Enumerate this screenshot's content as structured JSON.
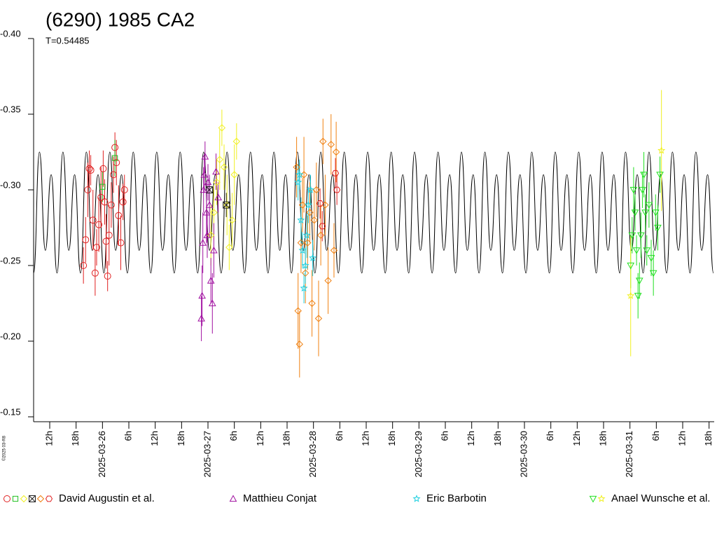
{
  "chart_data": {
    "type": "scatter",
    "title": "(6290) 1985 CA2",
    "subtitle": "T=0.54485",
    "credit": "©2025 03-R8",
    "xlim": [
      "2025-03-25T08:20",
      "2025-03-31T19:10"
    ],
    "xticks": [
      {
        "value": "2025-03-25T12:00",
        "label": "12h"
      },
      {
        "value": "2025-03-25T18:00",
        "label": "18h"
      },
      {
        "value": "2025-03-26T00:00",
        "label": "2025-03-26"
      },
      {
        "value": "2025-03-26T06:00",
        "label": "6h"
      },
      {
        "value": "2025-03-26T12:00",
        "label": "12h"
      },
      {
        "value": "2025-03-26T18:00",
        "label": "18h"
      },
      {
        "value": "2025-03-27T00:00",
        "label": "2025-03-27"
      },
      {
        "value": "2025-03-27T06:00",
        "label": "6h"
      },
      {
        "value": "2025-03-27T12:00",
        "label": "12h"
      },
      {
        "value": "2025-03-27T18:00",
        "label": "18h"
      },
      {
        "value": "2025-03-28T00:00",
        "label": "2025-03-28"
      },
      {
        "value": "2025-03-28T06:00",
        "label": "6h"
      },
      {
        "value": "2025-03-28T12:00",
        "label": "12h"
      },
      {
        "value": "2025-03-28T18:00",
        "label": "18h"
      },
      {
        "value": "2025-03-29T00:00",
        "label": "2025-03-29"
      },
      {
        "value": "2025-03-29T06:00",
        "label": "6h"
      },
      {
        "value": "2025-03-29T12:00",
        "label": "12h"
      },
      {
        "value": "2025-03-29T18:00",
        "label": "18h"
      },
      {
        "value": "2025-03-30T00:00",
        "label": "2025-03-30"
      },
      {
        "value": "2025-03-30T06:00",
        "label": "6h"
      },
      {
        "value": "2025-03-30T12:00",
        "label": "12h"
      },
      {
        "value": "2025-03-30T18:00",
        "label": "18h"
      },
      {
        "value": "2025-03-31T00:00",
        "label": "2025-03-31"
      },
      {
        "value": "2025-03-31T06:00",
        "label": "6h"
      },
      {
        "value": "2025-03-31T12:00",
        "label": "12h"
      },
      {
        "value": "2025-03-31T18:00",
        "label": "18h"
      }
    ],
    "ylim": [
      -0.15,
      -0.4
    ],
    "yticks": [
      {
        "value": -0.4,
        "label": "-0.40"
      },
      -0.35,
      {
        "value": -0.3,
        "label": "-0.30"
      },
      -0.25,
      {
        "value": -0.2,
        "label": "-0.20"
      },
      -0.15
    ],
    "model": {
      "color": "#000000",
      "x": [
        "2025-03-25T08:20",
        "2025-03-25T09:40",
        "2025-03-25T11:00",
        "2025-03-25T12:20",
        "2025-03-25T13:40",
        "2025-03-25T15:00",
        "2025-03-25T16:20",
        "2025-03-25T17:40",
        "2025-03-25T19:00",
        "2025-03-25T20:20",
        "2025-03-25T21:40",
        "2025-03-25T23:00",
        "2025-03-26T00:20",
        "2025-03-26T01:40",
        "2025-03-26T03:00",
        "2025-03-26T04:20",
        "2025-03-26T05:40",
        "2025-03-26T07:00",
        "2025-03-26T08:20",
        "2025-03-26T09:40",
        "2025-03-26T11:00",
        "2025-03-26T12:20",
        "2025-03-26T13:40",
        "2025-03-26T15:00",
        "2025-03-26T16:20",
        "2025-03-26T17:40",
        "2025-03-26T19:00",
        "2025-03-26T20:20",
        "2025-03-26T21:40",
        "2025-03-26T23:00",
        "2025-03-27T00:20",
        "2025-03-27T01:40",
        "2025-03-27T03:00",
        "2025-03-27T04:20",
        "2025-03-27T05:40",
        "2025-03-27T07:00",
        "2025-03-27T08:20",
        "2025-03-27T09:40",
        "2025-03-27T11:00",
        "2025-03-27T12:20",
        "2025-03-27T13:40",
        "2025-03-27T15:00",
        "2025-03-27T16:20",
        "2025-03-27T17:40",
        "2025-03-27T19:00",
        "2025-03-27T20:20",
        "2025-03-27T21:40",
        "2025-03-27T23:00",
        "2025-03-28T00:20",
        "2025-03-28T01:40",
        "2025-03-28T03:00",
        "2025-03-28T04:20",
        "2025-03-28T05:40",
        "2025-03-28T07:00",
        "2025-03-28T08:20",
        "2025-03-28T09:40",
        "2025-03-28T11:00",
        "2025-03-28T12:20",
        "2025-03-28T13:40",
        "2025-03-28T15:00",
        "2025-03-28T16:20",
        "2025-03-28T17:40",
        "2025-03-28T19:00",
        "2025-03-28T20:20",
        "2025-03-28T21:40",
        "2025-03-28T23:00",
        "2025-03-29T00:20",
        "2025-03-29T01:40",
        "2025-03-29T03:00",
        "2025-03-29T04:20",
        "2025-03-29T05:40",
        "2025-03-29T07:00",
        "2025-03-29T08:20",
        "2025-03-29T09:40",
        "2025-03-29T11:00",
        "2025-03-29T12:20",
        "2025-03-29T13:40",
        "2025-03-29T15:00",
        "2025-03-29T16:20",
        "2025-03-29T17:40",
        "2025-03-29T19:00",
        "2025-03-29T20:20",
        "2025-03-29T21:40",
        "2025-03-29T23:00",
        "2025-03-30T00:20",
        "2025-03-30T01:40",
        "2025-03-30T03:00",
        "2025-03-30T04:20",
        "2025-03-30T05:40",
        "2025-03-30T07:00",
        "2025-03-30T08:20",
        "2025-03-30T09:40",
        "2025-03-30T11:00",
        "2025-03-30T12:20",
        "2025-03-30T13:40",
        "2025-03-30T15:00",
        "2025-03-30T16:20",
        "2025-03-30T17:40",
        "2025-03-30T19:00",
        "2025-03-30T20:20",
        "2025-03-30T21:40",
        "2025-03-30T23:00",
        "2025-03-31T00:20",
        "2025-03-31T01:40",
        "2025-03-31T03:00",
        "2025-03-31T04:20",
        "2025-03-31T05:40",
        "2025-03-31T07:00",
        "2025-03-31T08:20",
        "2025-03-31T09:40",
        "2025-03-31T11:00",
        "2025-03-31T12:20",
        "2025-03-31T13:40",
        "2025-03-31T15:00",
        "2025-03-31T16:20",
        "2025-03-31T17:40",
        "2025-03-31T19:00"
      ],
      "values": [
        -0.245,
        -0.325,
        -0.26,
        -0.31,
        -0.245,
        -0.325,
        -0.26,
        -0.31,
        -0.245,
        -0.325,
        -0.26,
        -0.31,
        -0.245,
        -0.325,
        -0.26,
        -0.31,
        -0.245,
        -0.325,
        -0.26,
        -0.31,
        -0.245,
        -0.325,
        -0.26,
        -0.31,
        -0.245,
        -0.325,
        -0.26,
        -0.31,
        -0.245,
        -0.325,
        -0.26,
        -0.31,
        -0.245,
        -0.325,
        -0.26,
        -0.31,
        -0.245,
        -0.325,
        -0.26,
        -0.31,
        -0.245,
        -0.325,
        -0.26,
        -0.31,
        -0.245,
        -0.325,
        -0.26,
        -0.31,
        -0.245,
        -0.325,
        -0.26,
        -0.31,
        -0.245,
        -0.325,
        -0.26,
        -0.31,
        -0.245,
        -0.325,
        -0.26,
        -0.31,
        -0.245,
        -0.325,
        -0.26,
        -0.31,
        -0.245,
        -0.325,
        -0.26,
        -0.31,
        -0.245,
        -0.325,
        -0.26,
        -0.31,
        -0.245,
        -0.325,
        -0.26,
        -0.31,
        -0.245,
        -0.325,
        -0.26,
        -0.31,
        -0.245,
        -0.325,
        -0.26,
        -0.31,
        -0.245,
        -0.325,
        -0.26,
        -0.31,
        -0.245,
        -0.325,
        -0.26,
        -0.31,
        -0.245,
        -0.325,
        -0.26,
        -0.31,
        -0.245,
        -0.325,
        -0.26,
        -0.31,
        -0.245,
        -0.325,
        -0.26,
        -0.31,
        -0.245,
        -0.325,
        -0.26,
        -0.31,
        -0.245,
        -0.325,
        -0.26,
        -0.31,
        -0.245,
        -0.325,
        -0.26,
        -0.31,
        -0.245
      ]
    },
    "series": [
      {
        "name": "David Augustin et al.",
        "markers": [
          {
            "shape": "circle",
            "color": "#e02020",
            "x": [
              "2025-03-25T19:40",
              "2025-03-25T20:10",
              "2025-03-25T20:40",
              "2025-03-25T21:00",
              "2025-03-25T21:20",
              "2025-03-25T21:50",
              "2025-03-25T22:20",
              "2025-03-25T22:40",
              "2025-03-25T23:10",
              "2025-03-25T23:40",
              "2025-03-26T00:10",
              "2025-03-26T00:30",
              "2025-03-26T00:50",
              "2025-03-26T01:10",
              "2025-03-26T01:30",
              "2025-03-26T02:00",
              "2025-03-26T02:30",
              "2025-03-26T02:50",
              "2025-03-26T03:10",
              "2025-03-26T03:40",
              "2025-03-26T04:10",
              "2025-03-26T04:40",
              "2025-03-26T05:00"
            ],
            "values": [
              -0.25,
              -0.267,
              -0.3,
              -0.314,
              -0.313,
              -0.28,
              -0.245,
              -0.262,
              -0.277,
              -0.295,
              -0.314,
              -0.292,
              -0.266,
              -0.243,
              -0.27,
              -0.29,
              -0.31,
              -0.328,
              -0.318,
              -0.283,
              -0.265,
              -0.292,
              -0.3
            ],
            "errors": [
              0.012,
              0.015,
              0.018,
              0.012,
              0.01,
              0.02,
              0.015,
              0.012,
              0.018,
              0.02,
              0.012,
              0.015,
              0.018,
              0.01,
              0.02,
              0.015,
              0.012,
              0.01,
              0.015,
              0.02,
              0.018,
              0.012,
              0.01
            ]
          },
          {
            "shape": "square",
            "color": "#20c020",
            "x": [
              "2025-03-26T00:00",
              "2025-03-26T02:50"
            ],
            "values": [
              -0.302,
              -0.321
            ],
            "errors": [
              0.01,
              0.012
            ]
          },
          {
            "shape": "diamond",
            "color": "#f0f020",
            "x": [
              "2025-03-27T00:40",
              "2025-03-27T01:20",
              "2025-03-27T02:00",
              "2025-03-27T02:40",
              "2025-03-27T03:10",
              "2025-03-27T03:40",
              "2025-03-27T04:20",
              "2025-03-27T04:50",
              "2025-03-27T05:30",
              "2025-03-27T06:00",
              "2025-03-27T06:30"
            ],
            "values": [
              -0.27,
              -0.285,
              -0.305,
              -0.32,
              -0.341,
              -0.315,
              -0.29,
              -0.262,
              -0.28,
              -0.31,
              -0.332
            ],
            "errors": [
              0.02,
              0.018,
              0.015,
              0.02,
              0.012,
              0.015,
              0.02,
              0.015,
              0.018,
              0.02,
              0.012
            ]
          },
          {
            "shape": "x",
            "color": "#202020",
            "x": [
              "2025-03-27T00:20",
              "2025-03-27T04:10"
            ],
            "values": [
              -0.3,
              -0.29
            ],
            "errors": [
              0.008,
              0.008
            ]
          },
          {
            "shape": "diamond",
            "color": "#f08010",
            "x": [
              "2025-03-27T20:10",
              "2025-03-27T20:30",
              "2025-03-27T20:50",
              "2025-03-27T21:10",
              "2025-03-27T21:30",
              "2025-03-27T21:50",
              "2025-03-27T22:10",
              "2025-03-27T22:40",
              "2025-03-27T23:10",
              "2025-03-27T23:40",
              "2025-03-28T00:10",
              "2025-03-28T00:40",
              "2025-03-28T01:10",
              "2025-03-28T01:40",
              "2025-03-28T02:10",
              "2025-03-28T02:40",
              "2025-03-28T03:20",
              "2025-03-28T04:00",
              "2025-03-28T04:40",
              "2025-03-28T05:10"
            ],
            "values": [
              -0.315,
              -0.22,
              -0.198,
              -0.265,
              -0.29,
              -0.31,
              -0.245,
              -0.265,
              -0.285,
              -0.225,
              -0.28,
              -0.3,
              -0.215,
              -0.27,
              -0.332,
              -0.29,
              -0.24,
              -0.33,
              -0.26,
              -0.325
            ],
            "errors": [
              0.02,
              0.025,
              0.022,
              0.02,
              0.018,
              0.025,
              0.02,
              0.018,
              0.02,
              0.022,
              0.02,
              0.018,
              0.025,
              0.02,
              0.015,
              0.02,
              0.022,
              0.02,
              0.018,
              0.02
            ]
          },
          {
            "shape": "hexagon",
            "color": "#e02020",
            "x": [
              "2025-03-28T01:30",
              "2025-03-28T02:00",
              "2025-03-28T05:00",
              "2025-03-28T05:20"
            ],
            "values": [
              -0.291,
              -0.276,
              -0.311,
              -0.3
            ],
            "errors": [
              0.01,
              0.01,
              0.01,
              0.01
            ]
          }
        ]
      },
      {
        "name": "Matthieu Conjat",
        "markers": [
          {
            "shape": "triangle",
            "color": "#a010a0",
            "x": [
              "2025-03-26T22:30",
              "2025-03-26T22:40",
              "2025-03-26T22:50",
              "2025-03-26T23:00",
              "2025-03-26T23:10",
              "2025-03-26T23:20",
              "2025-03-26T23:40",
              "2025-03-26T23:50",
              "2025-03-27T00:00",
              "2025-03-27T00:20",
              "2025-03-27T00:40",
              "2025-03-27T01:00",
              "2025-03-27T01:20",
              "2025-03-27T01:50",
              "2025-03-27T02:20"
            ],
            "values": [
              -0.215,
              -0.23,
              -0.265,
              -0.3,
              -0.31,
              -0.322,
              -0.285,
              -0.27,
              -0.305,
              -0.29,
              -0.24,
              -0.225,
              -0.26,
              -0.312,
              -0.295
            ],
            "errors": [
              0.015,
              0.02,
              0.02,
              0.015,
              0.012,
              0.01,
              0.02,
              0.015,
              0.012,
              0.02,
              0.015,
              0.02,
              0.018,
              0.012,
              0.01
            ]
          }
        ]
      },
      {
        "name": "Eric Barbotin",
        "markers": [
          {
            "shape": "star",
            "color": "#20d0e0",
            "x": [
              "2025-03-27T20:30",
              "2025-03-27T20:50",
              "2025-03-27T21:10",
              "2025-03-27T21:30",
              "2025-03-27T21:50",
              "2025-03-27T22:10",
              "2025-03-27T22:30",
              "2025-03-27T22:50",
              "2025-03-27T23:20",
              "2025-03-27T23:50"
            ],
            "values": [
              -0.305,
              -0.31,
              -0.28,
              -0.26,
              -0.235,
              -0.25,
              -0.27,
              -0.29,
              -0.3,
              -0.255
            ],
            "errors": [
              0.012,
              0.01,
              0.015,
              0.012,
              0.01,
              0.012,
              0.015,
              0.012,
              0.01,
              0.012
            ]
          }
        ]
      },
      {
        "name": "Anael Wunsche et al.",
        "markers": [
          {
            "shape": "dtriangle",
            "color": "#20e020",
            "x": [
              "2025-03-31T00:10",
              "2025-03-31T00:30",
              "2025-03-31T00:50",
              "2025-03-31T01:10",
              "2025-03-31T01:30",
              "2025-03-31T01:50",
              "2025-03-31T02:10",
              "2025-03-31T02:30",
              "2025-03-31T02:50",
              "2025-03-31T03:10",
              "2025-03-31T03:30",
              "2025-03-31T03:50",
              "2025-03-31T04:20",
              "2025-03-31T04:50",
              "2025-03-31T05:20",
              "2025-03-31T05:50",
              "2025-03-31T06:20",
              "2025-03-31T06:50"
            ],
            "values": [
              -0.25,
              -0.27,
              -0.3,
              -0.285,
              -0.26,
              -0.23,
              -0.24,
              -0.27,
              -0.3,
              -0.31,
              -0.285,
              -0.26,
              -0.29,
              -0.255,
              -0.245,
              -0.285,
              -0.275,
              -0.31
            ],
            "errors": [
              0.015,
              0.012,
              0.015,
              0.012,
              0.01,
              0.015,
              0.012,
              0.015,
              0.012,
              0.015,
              0.012,
              0.01,
              0.015,
              0.012,
              0.015,
              0.012,
              0.015,
              0.012
            ]
          },
          {
            "shape": "star",
            "color": "#f0f020",
            "x": [
              "2025-03-31T00:10",
              "2025-03-31T07:10"
            ],
            "values": [
              -0.23,
              -0.326
            ],
            "errors": [
              0.04,
              0.04
            ]
          }
        ]
      }
    ]
  }
}
